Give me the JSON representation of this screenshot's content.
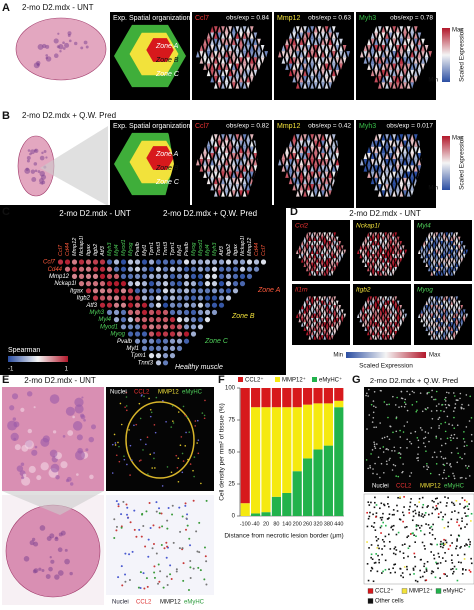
{
  "panels": {
    "a": {
      "label": "A",
      "title": "2-mo D2.mdx - UNT",
      "maps": [
        {
          "title": "Exp. Spatial organization"
        },
        {
          "title": "Ccl7",
          "stat": "obs/exp = 0.84"
        },
        {
          "title": "Mmp12",
          "stat": "obs/exp = 0.63"
        },
        {
          "title": "Myh3",
          "stat": "obs/exp = 0.78"
        }
      ],
      "zones": [
        "Zone A",
        "Zone B",
        "Zone C"
      ],
      "colorbar": {
        "max": "Max",
        "min": "Min",
        "label": "Scaled Expression"
      }
    },
    "b": {
      "label": "B",
      "title": "2-mo D2.mdx + Q.W. Pred",
      "maps": [
        {
          "title": "Exp. Spatial organization"
        },
        {
          "title": "Ccl7",
          "stat": "obs/exp = 0.82"
        },
        {
          "title": "Mmp12",
          "stat": "obs/exp = 0.42"
        },
        {
          "title": "Myh3",
          "stat": "obs/exp = 0.017"
        }
      ],
      "zones": [
        "Zone A",
        "Zone B",
        "Zone C"
      ],
      "colorbar": {
        "max": "Max",
        "min": "Min",
        "label": "Scaled Expression"
      }
    },
    "c": {
      "label": "C",
      "left_title": "2-mo D2.mdx - UNT",
      "right_title": "2-mo D2.mdx + Q.W. Pred",
      "genes": [
        "Ccl7",
        "Cd44",
        "Mmp12",
        "Nckap1l",
        "Itgax",
        "Itgb2",
        "Atf3",
        "Myh3",
        "Myl4",
        "Myod1",
        "Myog",
        "Pvalb",
        "Myl1",
        "Tpm1",
        "Tnnt3"
      ],
      "zones": [
        "Zone A",
        "Zone B",
        "Zone C",
        "Healthy muscle"
      ],
      "legend": {
        "title": "Spearman",
        "min": -1,
        "max": 1
      }
    },
    "d": {
      "label": "D",
      "title": "2-mo D2.mdx - UNT",
      "genes": [
        "Ccl2",
        "Nckap1l",
        "Myl4",
        "Il1rn",
        "Itgb2",
        "Myog"
      ],
      "colorbar": {
        "min": "Min",
        "max": "Max",
        "label": "Scaled Expression"
      }
    },
    "e": {
      "label": "E",
      "title": "2-mo D2.mdx - UNT",
      "stains": [
        "Nuclei",
        "CCL2",
        "MMP12",
        "eMyHC"
      ]
    },
    "g": {
      "label": "G",
      "title": "2-mo D2.mdx + Q.W. Pred",
      "stains": [
        "Nuclei",
        "CCL2",
        "MMP12",
        "eMyHC"
      ],
      "legend": [
        "CCL2⁺",
        "MMP12⁺",
        "eMyHC⁺",
        "Other cells"
      ]
    }
  },
  "chart_data": {
    "type": "bar",
    "stacked": true,
    "label": "F",
    "categories": [
      -100,
      -40,
      20,
      80,
      140,
      200,
      260,
      320,
      380,
      440
    ],
    "series": [
      {
        "name": "CCL2⁺",
        "color": "#d7191c",
        "values": [
          90,
          15,
          15,
          15,
          15,
          15,
          13,
          12,
          12,
          10
        ]
      },
      {
        "name": "MMP12⁺",
        "color": "#f5e90f",
        "values": [
          10,
          83,
          82,
          70,
          67,
          50,
          42,
          36,
          33,
          5
        ]
      },
      {
        "name": "eMyHC⁺",
        "color": "#22b24c",
        "values": [
          0,
          2,
          3,
          15,
          18,
          35,
          45,
          52,
          55,
          85
        ]
      }
    ],
    "ylim": [
      0,
      100
    ],
    "yticks": [
      0,
      25,
      50,
      75,
      100
    ],
    "y_label": "Cell density per mm² of tissue (%)",
    "x_label": "Distance from necrotic lesion border (μm)"
  }
}
